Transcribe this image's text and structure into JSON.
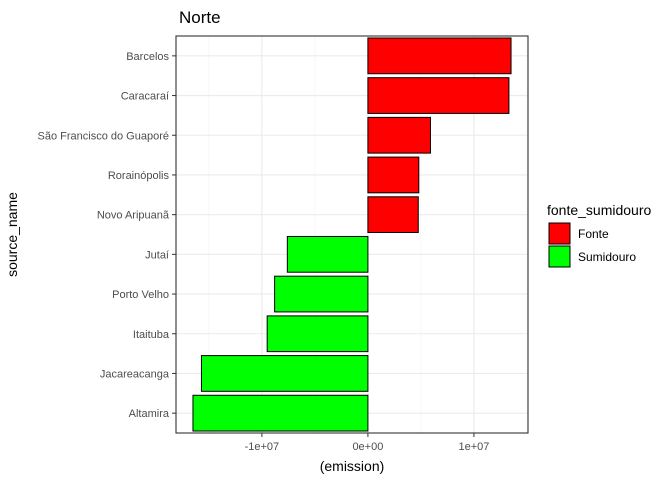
{
  "chart_data": {
    "type": "bar",
    "orientation": "horizontal",
    "title": "Norte",
    "xlabel": "(emission)",
    "ylabel": "source_name",
    "categories": [
      "Barcelos",
      "Caracaraí",
      "São Francisco do Guaporé",
      "Rorainópolis",
      "Novo Aripuanã",
      "Jutaí",
      "Porto Velho",
      "Itaituba",
      "Jacareacanga",
      "Altamira"
    ],
    "values": [
      13500000,
      13300000,
      5900000,
      4800000,
      4750000,
      -7600000,
      -8800000,
      -9500000,
      -15700000,
      -16500000
    ],
    "groups": [
      "Fonte",
      "Fonte",
      "Fonte",
      "Fonte",
      "Fonte",
      "Sumidouro",
      "Sumidouro",
      "Sumidouro",
      "Sumidouro",
      "Sumidouro"
    ],
    "xlim": [
      -18100000,
      15100000
    ],
    "x_ticks": [
      -10000000,
      0,
      10000000
    ],
    "x_tick_labels": [
      "-1e+07",
      "0e+00",
      "1e+07"
    ],
    "grid": true,
    "legend": {
      "title": "fonte_sumidouro",
      "placement": "right",
      "items": [
        {
          "label": "Fonte",
          "color": "#ff0000"
        },
        {
          "label": "Sumidouro",
          "color": "#00ff00"
        }
      ]
    }
  }
}
